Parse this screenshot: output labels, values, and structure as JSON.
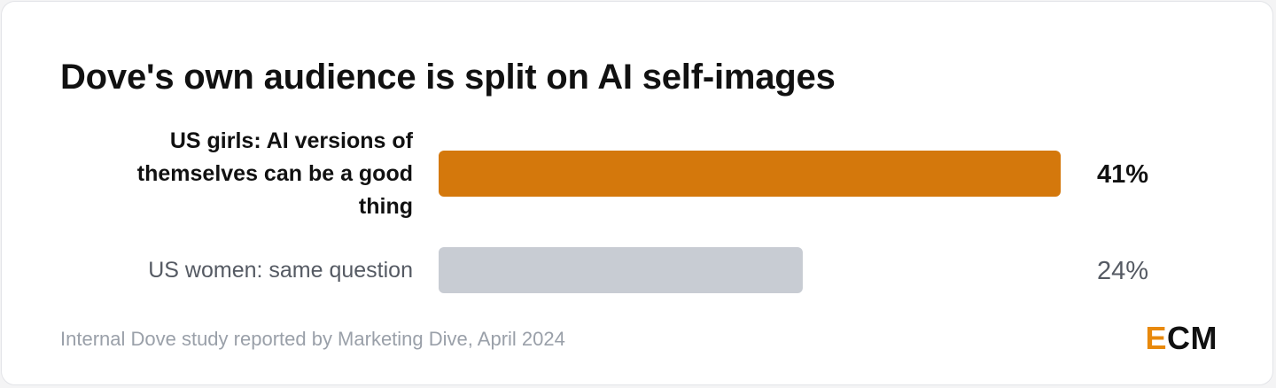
{
  "title": "Dove's own audience is split on AI self-images",
  "source": "Internal Dove study reported by Marketing Dive, April 2024",
  "logo": {
    "first": "E",
    "rest": "CM"
  },
  "colors": {
    "highlight_bar": "#d4780c",
    "muted_bar": "#c8ccd3",
    "highlight_text": "#111111",
    "muted_text": "#555a63",
    "logo_accent": "#e8890c"
  },
  "chart_data": {
    "type": "bar",
    "orientation": "horizontal",
    "categories": [
      [
        "US girls: AI versions of",
        "themselves can be a good",
        "thing"
      ],
      [
        "US women: same question"
      ]
    ],
    "values": [
      41,
      24
    ],
    "value_labels": [
      "41%",
      "24%"
    ],
    "unit": "%",
    "highlighted": [
      true,
      false
    ],
    "xlim": [
      0,
      41
    ],
    "grid": false,
    "legend": "none"
  }
}
